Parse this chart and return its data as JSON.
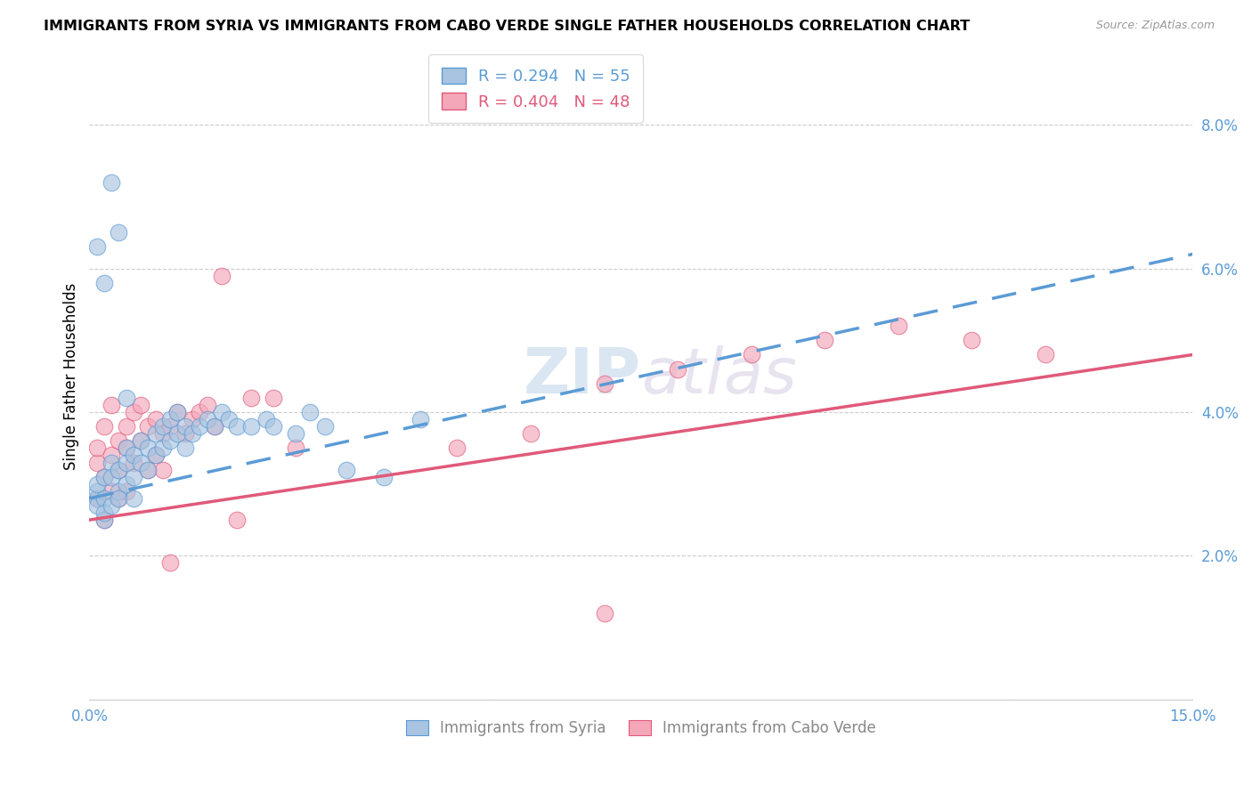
{
  "title": "IMMIGRANTS FROM SYRIA VS IMMIGRANTS FROM CABO VERDE SINGLE FATHER HOUSEHOLDS CORRELATION CHART",
  "source": "Source: ZipAtlas.com",
  "ylabel": "Single Father Households",
  "xlim": [
    0.0,
    0.15
  ],
  "ylim": [
    0.0,
    0.09
  ],
  "syria_R": 0.294,
  "syria_N": 55,
  "cabo_verde_R": 0.404,
  "cabo_verde_N": 48,
  "syria_color": "#a8c4e0",
  "cabo_verde_color": "#f4a7b9",
  "syria_line_color": "#5b9bd5",
  "cabo_verde_line_color": "#e05a7a",
  "watermark_zip": "ZIP",
  "watermark_atlas": "atlas",
  "syria_line_x0": 0.0,
  "syria_line_y0": 0.028,
  "syria_line_x1": 0.15,
  "syria_line_y1": 0.062,
  "cabo_line_x0": 0.0,
  "cabo_line_y0": 0.025,
  "cabo_line_x1": 0.15,
  "cabo_line_y1": 0.048,
  "syria_scatter_x": [
    0.001,
    0.001,
    0.001,
    0.001,
    0.002,
    0.002,
    0.002,
    0.002,
    0.003,
    0.003,
    0.003,
    0.004,
    0.004,
    0.004,
    0.005,
    0.005,
    0.005,
    0.006,
    0.006,
    0.006,
    0.007,
    0.007,
    0.008,
    0.008,
    0.009,
    0.009,
    0.01,
    0.01,
    0.011,
    0.011,
    0.012,
    0.012,
    0.013,
    0.013,
    0.014,
    0.015,
    0.016,
    0.017,
    0.018,
    0.019,
    0.02,
    0.022,
    0.024,
    0.025,
    0.028,
    0.03,
    0.032,
    0.035,
    0.04,
    0.045,
    0.001,
    0.002,
    0.003,
    0.004,
    0.005
  ],
  "syria_scatter_y": [
    0.028,
    0.029,
    0.03,
    0.027,
    0.031,
    0.028,
    0.025,
    0.026,
    0.033,
    0.031,
    0.027,
    0.032,
    0.029,
    0.028,
    0.035,
    0.033,
    0.03,
    0.034,
    0.031,
    0.028,
    0.036,
    0.033,
    0.035,
    0.032,
    0.037,
    0.034,
    0.038,
    0.035,
    0.039,
    0.036,
    0.04,
    0.037,
    0.038,
    0.035,
    0.037,
    0.038,
    0.039,
    0.038,
    0.04,
    0.039,
    0.038,
    0.038,
    0.039,
    0.038,
    0.037,
    0.04,
    0.038,
    0.032,
    0.031,
    0.039,
    0.063,
    0.058,
    0.072,
    0.065,
    0.042
  ],
  "cabo_verde_scatter_x": [
    0.001,
    0.001,
    0.001,
    0.002,
    0.002,
    0.002,
    0.003,
    0.003,
    0.003,
    0.004,
    0.004,
    0.004,
    0.005,
    0.005,
    0.005,
    0.006,
    0.006,
    0.007,
    0.007,
    0.008,
    0.008,
    0.009,
    0.009,
    0.01,
    0.01,
    0.011,
    0.011,
    0.012,
    0.013,
    0.014,
    0.015,
    0.016,
    0.017,
    0.018,
    0.02,
    0.022,
    0.025,
    0.028,
    0.05,
    0.06,
    0.07,
    0.08,
    0.09,
    0.1,
    0.11,
    0.12,
    0.13,
    0.07
  ],
  "cabo_verde_scatter_y": [
    0.033,
    0.028,
    0.035,
    0.031,
    0.038,
    0.025,
    0.034,
    0.029,
    0.041,
    0.036,
    0.032,
    0.028,
    0.035,
    0.038,
    0.029,
    0.04,
    0.033,
    0.041,
    0.036,
    0.038,
    0.032,
    0.039,
    0.034,
    0.037,
    0.032,
    0.038,
    0.019,
    0.04,
    0.037,
    0.039,
    0.04,
    0.041,
    0.038,
    0.059,
    0.025,
    0.042,
    0.042,
    0.035,
    0.035,
    0.037,
    0.044,
    0.046,
    0.048,
    0.05,
    0.052,
    0.05,
    0.048,
    0.012
  ]
}
